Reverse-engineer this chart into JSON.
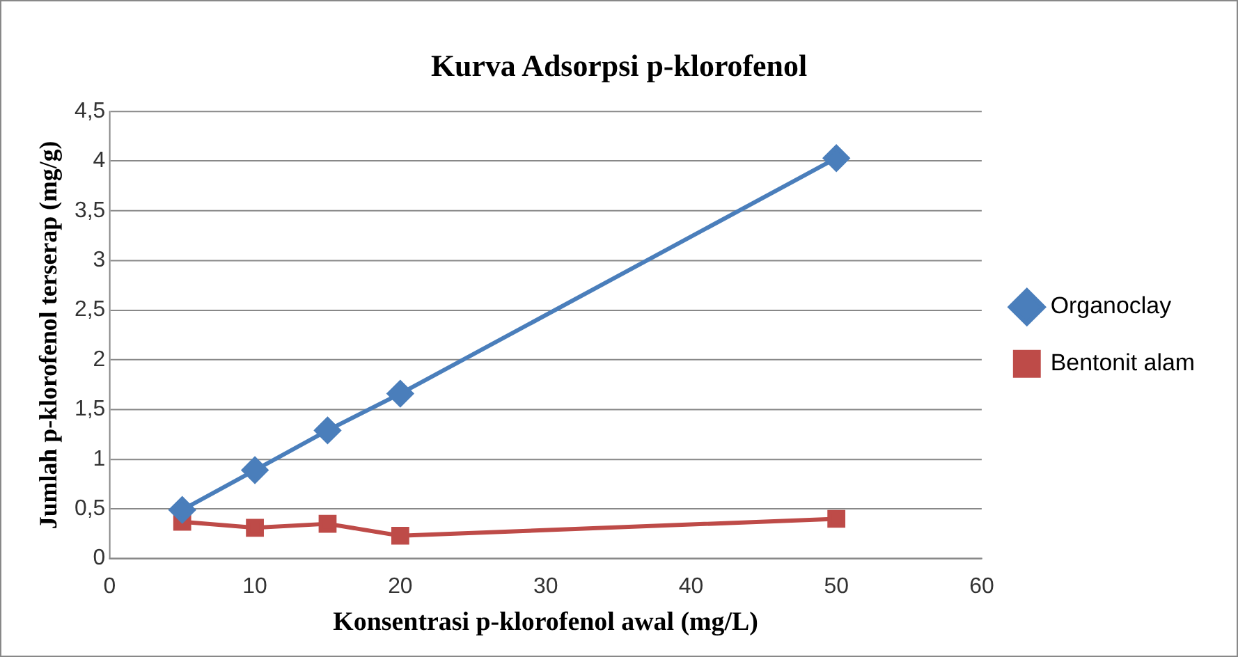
{
  "chart_data": {
    "type": "line",
    "title": "Kurva Adsorpsi p-klorofenol",
    "xlabel": "Konsentrasi p-klorofenol awal (mg/L)",
    "ylabel": "Jumlah p-klorofenol terserap (mg/g)",
    "x": [
      5,
      10,
      15,
      20,
      50
    ],
    "series": [
      {
        "name": "Organoclay",
        "color": "#4a7ebb",
        "marker": "diamond",
        "values": [
          0.49,
          0.89,
          1.29,
          1.66,
          4.03
        ]
      },
      {
        "name": "Bentonit alam",
        "color": "#be4b48",
        "marker": "square",
        "values": [
          0.37,
          0.31,
          0.35,
          0.23,
          0.4
        ]
      }
    ],
    "xlim": [
      0,
      60
    ],
    "xticks": [
      0,
      10,
      20,
      30,
      40,
      50,
      60
    ],
    "ylim": [
      0,
      4.5
    ],
    "yticks": [
      0,
      {
        "value": 0.5,
        "label": "0,5"
      },
      1,
      {
        "value": 1.5,
        "label": "1,5"
      },
      2,
      {
        "value": 2.5,
        "label": "2,5"
      },
      3,
      {
        "value": 3.5,
        "label": "3,5"
      },
      4,
      {
        "value": 4.5,
        "label": "4,5"
      }
    ],
    "grid": "y",
    "legend": "right",
    "line_style": "solid"
  }
}
